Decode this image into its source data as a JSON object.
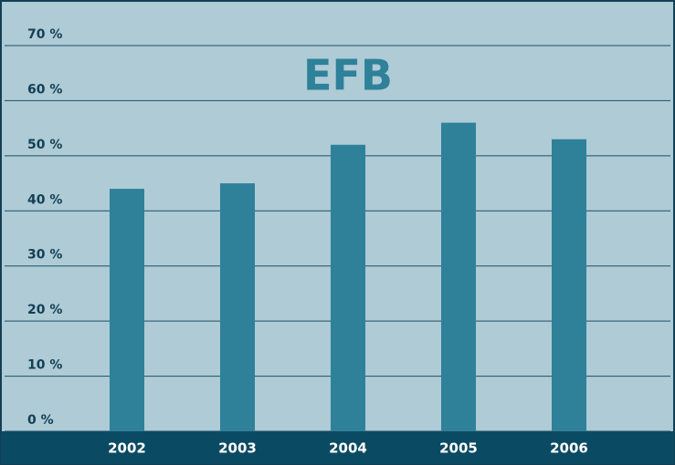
{
  "chart_data": {
    "type": "bar",
    "title": "EFB",
    "categories": [
      "2002",
      "2003",
      "2004",
      "2005",
      "2006"
    ],
    "values": [
      44,
      45,
      52,
      56,
      53
    ],
    "color": "#2e8199",
    "ylim": [
      0,
      70
    ],
    "yticks": [
      {
        "value": 0,
        "label": "0 %"
      },
      {
        "value": 10,
        "label": "10 %"
      },
      {
        "value": 20,
        "label": "20 %"
      },
      {
        "value": 30,
        "label": "30 %"
      },
      {
        "value": 40,
        "label": "40 %"
      },
      {
        "value": 50,
        "label": "50 %"
      },
      {
        "value": 60,
        "label": "60 %"
      },
      {
        "value": 70,
        "label": "70 %"
      }
    ],
    "grid": true
  }
}
